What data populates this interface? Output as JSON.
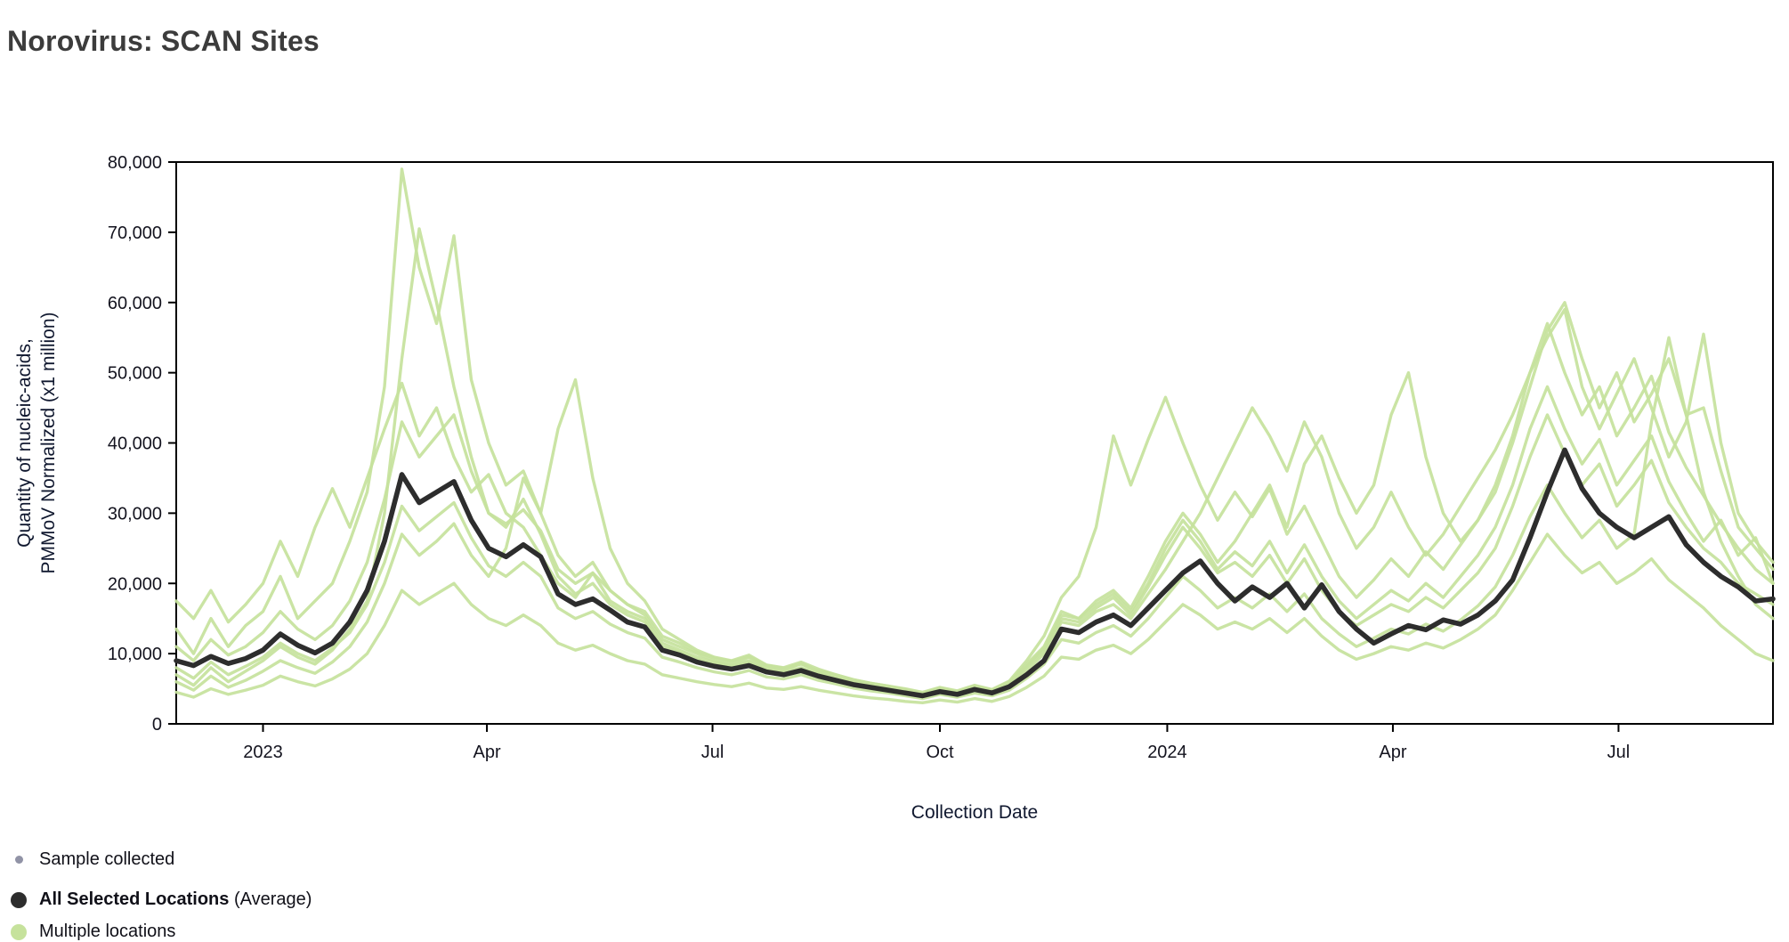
{
  "page": {
    "title": "Norovirus: SCAN Sites"
  },
  "axes": {
    "x_title": "Collection Date",
    "y_title_line1": "Quantity of nucleic-acids,",
    "y_title_line2": "PMMoV Normalized (x1 million)"
  },
  "legend": {
    "sample": "Sample collected",
    "average_bold": "All Selected Locations",
    "average_suffix": " (Average)",
    "locations": "Multiple locations"
  },
  "chart_data": {
    "type": "line",
    "title": "Norovirus: SCAN Sites",
    "xlabel": "Collection Date",
    "ylabel": "Quantity of nucleic-acids, PMMoV Normalized (x1 million)",
    "x_unit": "week_index_from_2022-11-27",
    "x_range": [
      0,
      92
    ],
    "ylim": [
      0,
      80000
    ],
    "grid": false,
    "legend_position": "bottom-left",
    "y_ticks": [
      0,
      10000,
      20000,
      30000,
      40000,
      50000,
      60000,
      70000,
      80000
    ],
    "x_ticks": [
      {
        "pos": 5.0,
        "label": "2023"
      },
      {
        "pos": 17.9,
        "label": "Apr"
      },
      {
        "pos": 30.9,
        "label": "Jul"
      },
      {
        "pos": 44.0,
        "label": "Oct"
      },
      {
        "pos": 57.1,
        "label": "2024"
      },
      {
        "pos": 70.1,
        "label": "Apr"
      },
      {
        "pos": 83.1,
        "label": "Jul"
      }
    ],
    "colors": {
      "average": "#2d2d2d",
      "site": "#c6e29c",
      "sample_dot": "#9193a6",
      "frame": "#000000",
      "tick_text": "#14141f"
    },
    "series": [
      {
        "name": "Site 1",
        "role": "site",
        "values": [
          13500,
          10000,
          15000,
          11000,
          14000,
          16000,
          21000,
          15000,
          17500,
          20000,
          26000,
          33000,
          48000,
          79000,
          65000,
          57000,
          69500,
          49000,
          40000,
          34000,
          36000,
          30000,
          24000,
          21000,
          23000,
          19000,
          17000,
          15500,
          12000,
          11000,
          10000,
          9000,
          8500,
          9500,
          8000,
          7600,
          8600,
          7400,
          6800,
          6000,
          5600,
          5200,
          4800,
          4300,
          5000,
          4500,
          5400,
          4800,
          6000,
          8500,
          11000,
          16000,
          15000,
          17500,
          19000,
          16500,
          21000,
          26000,
          30000,
          27000,
          23000,
          26000,
          30000,
          34000,
          28000,
          37000,
          41000,
          35000,
          30000,
          34000,
          44000,
          50000,
          38000,
          30000,
          26000,
          29000,
          33000,
          40000,
          48000,
          56000,
          60000,
          52000,
          45000,
          50000,
          43000,
          47000,
          52000,
          44000,
          45000,
          36000,
          28000,
          25000,
          22000
        ]
      },
      {
        "name": "Site 2",
        "role": "site",
        "values": [
          7000,
          5500,
          8000,
          6000,
          7500,
          9000,
          11000,
          9500,
          8500,
          10500,
          13500,
          17500,
          30000,
          52000,
          70500,
          60000,
          48000,
          38000,
          30000,
          28000,
          32000,
          27000,
          21000,
          18500,
          20000,
          17000,
          15500,
          14500,
          11000,
          10200,
          9200,
          8500,
          8000,
          8800,
          7600,
          7200,
          7800,
          7000,
          6400,
          5800,
          5300,
          4900,
          4500,
          4100,
          4700,
          4300,
          5000,
          4500,
          5500,
          7500,
          10000,
          14500,
          14000,
          16000,
          17000,
          15000,
          18500,
          22000,
          26000,
          30000,
          35000,
          40000,
          45000,
          41000,
          36000,
          43000,
          38000,
          30000,
          25000,
          28000,
          33000,
          28000,
          24000,
          27000,
          31000,
          35000,
          39000,
          44000,
          50000,
          55000,
          59000,
          48000,
          42000,
          47000,
          52000,
          45000,
          38000,
          43000,
          55500,
          40000,
          30000,
          26000,
          23000
        ]
      },
      {
        "name": "Site 3",
        "role": "site",
        "values": [
          17500,
          15000,
          19000,
          14500,
          17000,
          20000,
          26000,
          21000,
          28000,
          33500,
          28000,
          35000,
          42000,
          48500,
          41000,
          45000,
          38000,
          33000,
          35500,
          30000,
          28000,
          24000,
          20000,
          18000,
          21500,
          17500,
          16000,
          15000,
          11500,
          10500,
          9500,
          8800,
          8300,
          9000,
          7800,
          7400,
          8000,
          7200,
          6600,
          6000,
          5500,
          5100,
          4700,
          4200,
          4800,
          4400,
          5200,
          4600,
          5700,
          8000,
          10500,
          15000,
          14500,
          16500,
          18000,
          15500,
          19500,
          24000,
          28000,
          25000,
          21500,
          23000,
          21000,
          24000,
          20000,
          23500,
          19000,
          16000,
          14000,
          15500,
          17000,
          16000,
          18000,
          16500,
          19000,
          21500,
          25000,
          31000,
          38000,
          44000,
          38500,
          34000,
          37000,
          31000,
          34000,
          37500,
          31500,
          28000,
          25000,
          23000,
          20000,
          18500,
          17000
        ]
      },
      {
        "name": "Site 4",
        "role": "site",
        "values": [
          6000,
          4800,
          6800,
          5200,
          6200,
          7500,
          9000,
          8000,
          7200,
          8800,
          11000,
          14500,
          20000,
          27000,
          24000,
          26000,
          28500,
          24000,
          21000,
          25000,
          35000,
          30000,
          42000,
          49000,
          35000,
          25000,
          20000,
          17500,
          13500,
          12000,
          10500,
          9500,
          9000,
          9800,
          8400,
          8000,
          8800,
          7800,
          7000,
          6300,
          5800,
          5400,
          4900,
          4400,
          5100,
          4600,
          5400,
          4800,
          5900,
          8200,
          10800,
          15500,
          15000,
          17000,
          18500,
          16000,
          20000,
          25000,
          29000,
          26000,
          22000,
          24500,
          22500,
          26000,
          21500,
          25500,
          21000,
          17500,
          15000,
          17000,
          19000,
          17500,
          20000,
          18000,
          21000,
          24000,
          28000,
          34000,
          42000,
          48000,
          42000,
          37000,
          40500,
          34000,
          37500,
          41000,
          34500,
          30000,
          26000,
          29000,
          24000,
          26500,
          20000
        ]
      },
      {
        "name": "Site 5",
        "role": "site",
        "values": [
          4500,
          3800,
          5000,
          4200,
          4800,
          5500,
          6800,
          6000,
          5400,
          6400,
          7800,
          10000,
          14000,
          19000,
          17000,
          18500,
          20000,
          17000,
          15000,
          14000,
          15500,
          14000,
          11500,
          10500,
          11200,
          10000,
          9000,
          8500,
          7000,
          6500,
          6000,
          5600,
          5300,
          5800,
          5100,
          4900,
          5300,
          4800,
          4400,
          4000,
          3700,
          3500,
          3200,
          3000,
          3400,
          3100,
          3600,
          3200,
          3900,
          5200,
          6800,
          9500,
          9200,
          10500,
          11200,
          10000,
          12000,
          14500,
          17000,
          15500,
          13500,
          14500,
          13500,
          15000,
          13000,
          15000,
          12500,
          10500,
          9200,
          10000,
          11000,
          10500,
          11500,
          10800,
          12000,
          13500,
          15500,
          19000,
          23000,
          27000,
          24000,
          21500,
          23000,
          20000,
          21500,
          23500,
          20500,
          18500,
          16500,
          14000,
          12000,
          10000,
          9000
        ]
      },
      {
        "name": "Site 6",
        "role": "site",
        "values": [
          11000,
          9000,
          12000,
          9800,
          11000,
          13000,
          16000,
          13500,
          12000,
          14000,
          17500,
          23000,
          32000,
          43000,
          38000,
          41000,
          44000,
          36000,
          30000,
          28500,
          30500,
          27500,
          22000,
          20000,
          21500,
          19000,
          17000,
          16000,
          12500,
          11500,
          10200,
          9400,
          8900,
          9600,
          8300,
          7900,
          8500,
          7600,
          7000,
          6300,
          5800,
          5400,
          5000,
          4500,
          5200,
          4700,
          5500,
          4900,
          6100,
          9000,
          12500,
          18000,
          21000,
          28000,
          41000,
          34000,
          40500,
          46500,
          40000,
          34000,
          29000,
          33000,
          29500,
          33500,
          27000,
          31000,
          26000,
          21000,
          18000,
          20500,
          23500,
          21000,
          24500,
          22000,
          25500,
          29000,
          34000,
          41000,
          50000,
          57000,
          50000,
          44000,
          48000,
          41000,
          45000,
          49500,
          41500,
          36500,
          32500,
          28500,
          25000,
          22000,
          20000
        ]
      },
      {
        "name": "Site 7",
        "role": "site",
        "values": [
          8000,
          6500,
          8800,
          7000,
          8200,
          9500,
          11500,
          10000,
          9000,
          10800,
          13000,
          17000,
          23000,
          31000,
          27500,
          29500,
          31500,
          26500,
          22500,
          21000,
          23000,
          21000,
          16500,
          15000,
          16000,
          14200,
          13000,
          12200,
          9500,
          8800,
          8000,
          7400,
          7000,
          7600,
          6700,
          6400,
          7000,
          6200,
          5700,
          5100,
          4700,
          4400,
          4000,
          3600,
          4200,
          3800,
          4400,
          4000,
          4800,
          6500,
          8500,
          12000,
          11500,
          13000,
          14000,
          12500,
          15000,
          18000,
          21000,
          19000,
          16500,
          18000,
          16500,
          18500,
          16000,
          18500,
          15000,
          12800,
          11000,
          12200,
          13500,
          12800,
          14200,
          13200,
          14800,
          16800,
          19500,
          24000,
          29500,
          34000,
          30000,
          26500,
          29000,
          25000,
          27000,
          43000,
          55000,
          44000,
          33000,
          26000,
          21000,
          17000,
          15000
        ]
      },
      {
        "name": "All Selected Locations (Average)",
        "role": "average",
        "values": [
          9000,
          8300,
          9600,
          8600,
          9300,
          10500,
          12800,
          11200,
          10100,
          11500,
          14500,
          19000,
          26000,
          35500,
          31500,
          33000,
          34500,
          29000,
          25000,
          23800,
          25500,
          23800,
          18500,
          17000,
          17800,
          16200,
          14500,
          13800,
          10500,
          9800,
          8800,
          8200,
          7800,
          8300,
          7400,
          7000,
          7600,
          6800,
          6200,
          5600,
          5200,
          4800,
          4400,
          4000,
          4600,
          4200,
          4900,
          4400,
          5300,
          7000,
          9000,
          13500,
          13000,
          14500,
          15500,
          14000,
          16500,
          19000,
          21500,
          23200,
          20000,
          17500,
          19500,
          18000,
          20000,
          16500,
          19800,
          16000,
          13500,
          11500,
          12800,
          14000,
          13400,
          14800,
          14200,
          15500,
          17500,
          20500,
          26500,
          33000,
          39000,
          33500,
          30000,
          28000,
          26500,
          28000,
          29500,
          25500,
          23000,
          21000,
          19500,
          17500,
          17800
        ]
      }
    ]
  }
}
